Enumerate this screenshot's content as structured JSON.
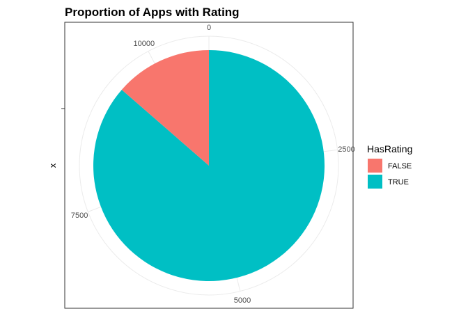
{
  "chart_data": {
    "type": "pie",
    "title": "Proportion of Apps with Rating",
    "xlabel": "",
    "ylabel": "x",
    "legend_title": "HasRating",
    "legend_position": "right",
    "categories": [
      "FALSE",
      "TRUE"
    ],
    "values": [
      1474,
      9367
    ],
    "colors": [
      "#F8766D",
      "#00BFC4"
    ],
    "theta_ticks": [
      "0",
      "2500",
      "5000",
      "7500",
      "10000"
    ],
    "theta_tick_values": [
      0,
      2500,
      5000,
      7500,
      10000
    ],
    "theta_range": [
      0,
      10841
    ],
    "grid": true
  }
}
